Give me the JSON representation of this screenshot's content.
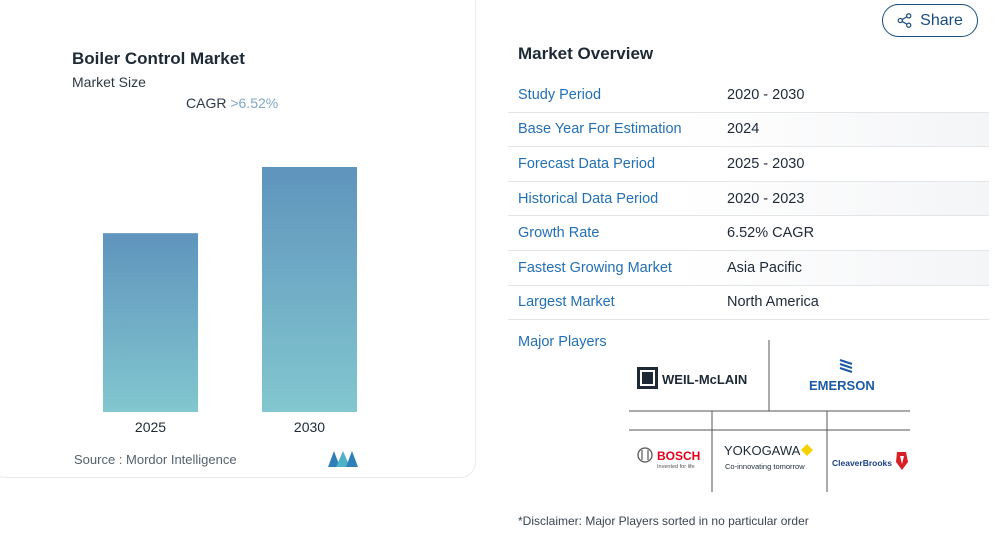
{
  "chart_panel": {
    "title": "Boiler Control Market",
    "subtitle": "Market Size",
    "cagr_label": "CAGR",
    "cagr_value": ">6.52%",
    "source_label": "Source :",
    "source_value": "Mordor Intelligence"
  },
  "chart_data": {
    "type": "bar",
    "categories": [
      "2025",
      "2030"
    ],
    "values": [
      1.0,
      1.37
    ],
    "title": "",
    "xlabel": "",
    "ylabel": "",
    "grid": false,
    "bar_colors": [
      "#5f94bd",
      "#82c7cf"
    ]
  },
  "share": {
    "label": "Share",
    "icon": "share-icon"
  },
  "overview": {
    "title": "Market Overview",
    "rows": [
      {
        "label": "Study Period",
        "value": "2020 - 2030"
      },
      {
        "label": "Base Year For Estimation",
        "value": "2024"
      },
      {
        "label": "Forecast Data Period",
        "value": "2025 - 2030"
      },
      {
        "label": "Historical Data Period",
        "value": "2020 - 2023"
      },
      {
        "label": "Growth Rate",
        "value": "6.52% CAGR"
      },
      {
        "label": "Fastest Growing Market",
        "value": "Asia Pacific"
      },
      {
        "label": "Largest Market",
        "value": "North America"
      }
    ],
    "players_title": "Major Players",
    "players": [
      "WEIL-McLAIN",
      "EMERSON",
      "BOSCH",
      "YOKOGAWA",
      "CleaverBrooks"
    ],
    "player_taglines": {
      "bosch": "Invented for life",
      "yokogawa": "Co-innovating tomorrow"
    },
    "disclaimer": "*Disclaimer: Major Players sorted in no particular order"
  },
  "colors": {
    "accent": "#2370b4",
    "share_border": "#1a4f7d",
    "bar_top": "#5f94bd",
    "bar_bottom": "#82c7cf"
  }
}
